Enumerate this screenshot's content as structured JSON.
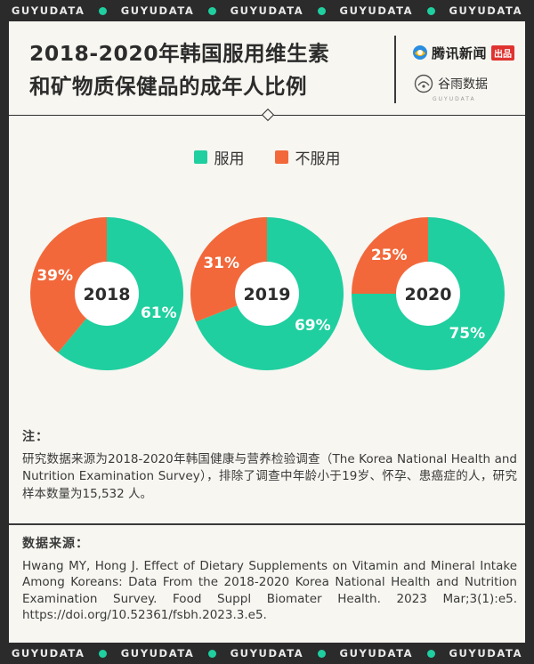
{
  "band_text": "GUYUDATA",
  "title": {
    "line1": "2018-2020年韩国服用维生素",
    "line2": "和矿物质保健品的成年人比例"
  },
  "brands": {
    "primary": "腾讯新闻",
    "primary_tag": "出品",
    "secondary": "谷雨数据",
    "secondary_sub": "GUYUDATA"
  },
  "colors": {
    "taking": "#1fcf9f",
    "not_taking": "#f2683a",
    "band_dot": "#1fcf9f"
  },
  "chart_data": {
    "type": "pie",
    "variant": "donut",
    "series_names": [
      "服用",
      "不服用"
    ],
    "charts": [
      {
        "year": "2018",
        "taking": 61,
        "not_taking": 39,
        "labels": [
          "61%",
          "39%"
        ]
      },
      {
        "year": "2019",
        "taking": 69,
        "not_taking": 31,
        "labels": [
          "69%",
          "31%"
        ]
      },
      {
        "year": "2020",
        "taking": 75,
        "not_taking": 25,
        "labels": [
          "75%",
          "25%"
        ]
      }
    ],
    "legend_position": "top-center"
  },
  "notes": {
    "heading": "注：",
    "text": "研究数据来源为2018-2020年韩国健康与营养检验调查（The Korea National Health and Nutrition Examination Survey），排除了调查中年龄小于19岁、怀孕、患癌症的人，研究样本数量为15,532 人。"
  },
  "source": {
    "heading": "数据来源：",
    "text": "Hwang MY, Hong J. Effect of Dietary Supplements on Vitamin and Mineral Intake Among Koreans: Data From the 2018-2020 Korea National Health and Nutrition Examination Survey. Food Suppl Biomater Health. 2023 Mar;3(1):e5. https://doi.org/10.52361/fsbh.2023.3.e5."
  }
}
